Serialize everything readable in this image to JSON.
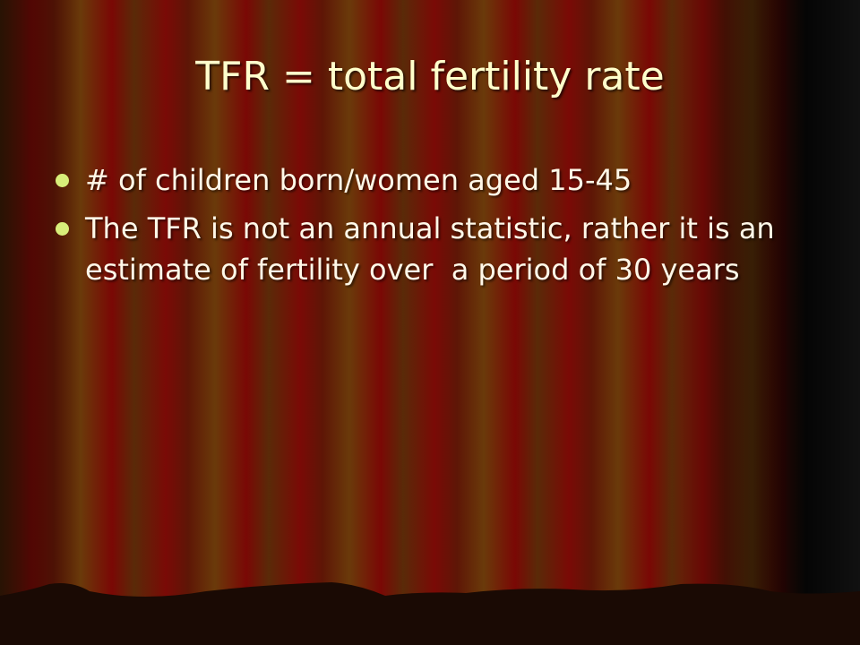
{
  "title": "TFR = total fertility rate",
  "bullets": [
    "# of children born/women aged 15-45",
    "The TFR is not an annual statistic, rather it is an  estimate of fertility over  a period of 30 years"
  ]
}
